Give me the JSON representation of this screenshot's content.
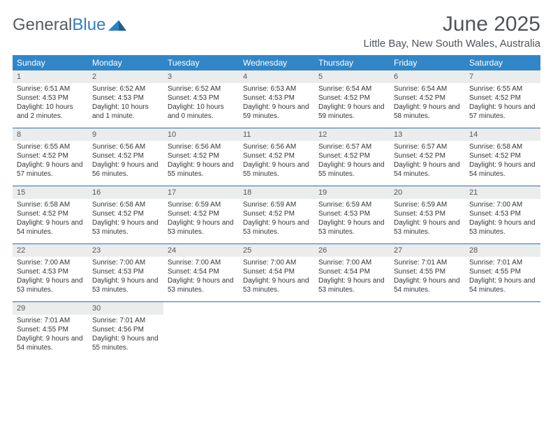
{
  "logo": {
    "text1": "General",
    "text2": "Blue"
  },
  "title": "June 2025",
  "location": "Little Bay, New South Wales, Australia",
  "colors": {
    "header_bg": "#3186c8",
    "divider": "#2f6fa8",
    "daynum_bg": "#ebecec",
    "text": "#4f5459"
  },
  "weekdays": [
    "Sunday",
    "Monday",
    "Tuesday",
    "Wednesday",
    "Thursday",
    "Friday",
    "Saturday"
  ],
  "weeks": [
    [
      {
        "n": "1",
        "sr": "Sunrise: 6:51 AM",
        "ss": "Sunset: 4:53 PM",
        "dl": "Daylight: 10 hours and 2 minutes."
      },
      {
        "n": "2",
        "sr": "Sunrise: 6:52 AM",
        "ss": "Sunset: 4:53 PM",
        "dl": "Daylight: 10 hours and 1 minute."
      },
      {
        "n": "3",
        "sr": "Sunrise: 6:52 AM",
        "ss": "Sunset: 4:53 PM",
        "dl": "Daylight: 10 hours and 0 minutes."
      },
      {
        "n": "4",
        "sr": "Sunrise: 6:53 AM",
        "ss": "Sunset: 4:53 PM",
        "dl": "Daylight: 9 hours and 59 minutes."
      },
      {
        "n": "5",
        "sr": "Sunrise: 6:54 AM",
        "ss": "Sunset: 4:52 PM",
        "dl": "Daylight: 9 hours and 59 minutes."
      },
      {
        "n": "6",
        "sr": "Sunrise: 6:54 AM",
        "ss": "Sunset: 4:52 PM",
        "dl": "Daylight: 9 hours and 58 minutes."
      },
      {
        "n": "7",
        "sr": "Sunrise: 6:55 AM",
        "ss": "Sunset: 4:52 PM",
        "dl": "Daylight: 9 hours and 57 minutes."
      }
    ],
    [
      {
        "n": "8",
        "sr": "Sunrise: 6:55 AM",
        "ss": "Sunset: 4:52 PM",
        "dl": "Daylight: 9 hours and 57 minutes."
      },
      {
        "n": "9",
        "sr": "Sunrise: 6:56 AM",
        "ss": "Sunset: 4:52 PM",
        "dl": "Daylight: 9 hours and 56 minutes."
      },
      {
        "n": "10",
        "sr": "Sunrise: 6:56 AM",
        "ss": "Sunset: 4:52 PM",
        "dl": "Daylight: 9 hours and 55 minutes."
      },
      {
        "n": "11",
        "sr": "Sunrise: 6:56 AM",
        "ss": "Sunset: 4:52 PM",
        "dl": "Daylight: 9 hours and 55 minutes."
      },
      {
        "n": "12",
        "sr": "Sunrise: 6:57 AM",
        "ss": "Sunset: 4:52 PM",
        "dl": "Daylight: 9 hours and 55 minutes."
      },
      {
        "n": "13",
        "sr": "Sunrise: 6:57 AM",
        "ss": "Sunset: 4:52 PM",
        "dl": "Daylight: 9 hours and 54 minutes."
      },
      {
        "n": "14",
        "sr": "Sunrise: 6:58 AM",
        "ss": "Sunset: 4:52 PM",
        "dl": "Daylight: 9 hours and 54 minutes."
      }
    ],
    [
      {
        "n": "15",
        "sr": "Sunrise: 6:58 AM",
        "ss": "Sunset: 4:52 PM",
        "dl": "Daylight: 9 hours and 54 minutes."
      },
      {
        "n": "16",
        "sr": "Sunrise: 6:58 AM",
        "ss": "Sunset: 4:52 PM",
        "dl": "Daylight: 9 hours and 53 minutes."
      },
      {
        "n": "17",
        "sr": "Sunrise: 6:59 AM",
        "ss": "Sunset: 4:52 PM",
        "dl": "Daylight: 9 hours and 53 minutes."
      },
      {
        "n": "18",
        "sr": "Sunrise: 6:59 AM",
        "ss": "Sunset: 4:52 PM",
        "dl": "Daylight: 9 hours and 53 minutes."
      },
      {
        "n": "19",
        "sr": "Sunrise: 6:59 AM",
        "ss": "Sunset: 4:53 PM",
        "dl": "Daylight: 9 hours and 53 minutes."
      },
      {
        "n": "20",
        "sr": "Sunrise: 6:59 AM",
        "ss": "Sunset: 4:53 PM",
        "dl": "Daylight: 9 hours and 53 minutes."
      },
      {
        "n": "21",
        "sr": "Sunrise: 7:00 AM",
        "ss": "Sunset: 4:53 PM",
        "dl": "Daylight: 9 hours and 53 minutes."
      }
    ],
    [
      {
        "n": "22",
        "sr": "Sunrise: 7:00 AM",
        "ss": "Sunset: 4:53 PM",
        "dl": "Daylight: 9 hours and 53 minutes."
      },
      {
        "n": "23",
        "sr": "Sunrise: 7:00 AM",
        "ss": "Sunset: 4:53 PM",
        "dl": "Daylight: 9 hours and 53 minutes."
      },
      {
        "n": "24",
        "sr": "Sunrise: 7:00 AM",
        "ss": "Sunset: 4:54 PM",
        "dl": "Daylight: 9 hours and 53 minutes."
      },
      {
        "n": "25",
        "sr": "Sunrise: 7:00 AM",
        "ss": "Sunset: 4:54 PM",
        "dl": "Daylight: 9 hours and 53 minutes."
      },
      {
        "n": "26",
        "sr": "Sunrise: 7:00 AM",
        "ss": "Sunset: 4:54 PM",
        "dl": "Daylight: 9 hours and 53 minutes."
      },
      {
        "n": "27",
        "sr": "Sunrise: 7:01 AM",
        "ss": "Sunset: 4:55 PM",
        "dl": "Daylight: 9 hours and 54 minutes."
      },
      {
        "n": "28",
        "sr": "Sunrise: 7:01 AM",
        "ss": "Sunset: 4:55 PM",
        "dl": "Daylight: 9 hours and 54 minutes."
      }
    ],
    [
      {
        "n": "29",
        "sr": "Sunrise: 7:01 AM",
        "ss": "Sunset: 4:55 PM",
        "dl": "Daylight: 9 hours and 54 minutes."
      },
      {
        "n": "30",
        "sr": "Sunrise: 7:01 AM",
        "ss": "Sunset: 4:56 PM",
        "dl": "Daylight: 9 hours and 55 minutes."
      },
      null,
      null,
      null,
      null,
      null
    ]
  ]
}
